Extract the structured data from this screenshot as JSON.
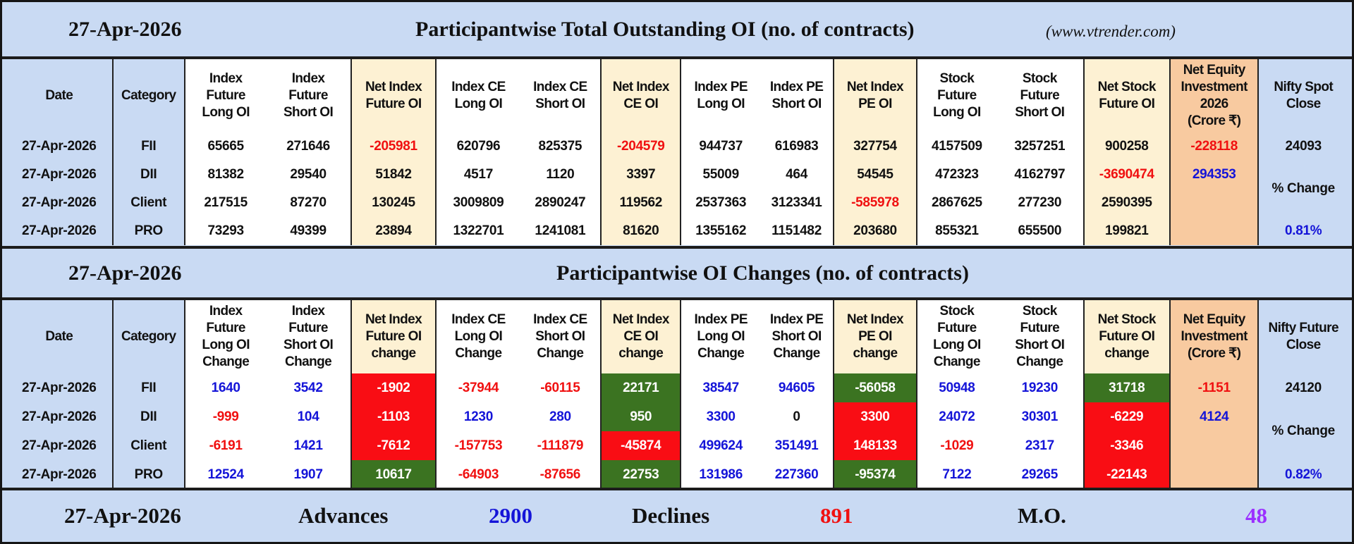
{
  "palette": {
    "red": "#f01010",
    "blue": "#1414d8",
    "purple": "#9b30ff"
  },
  "section1": {
    "date": "27-Apr-2026",
    "title": "Participantwise Total Outstanding OI (no. of contracts)",
    "source": "(www.vtrender.com)",
    "headers": [
      "Date",
      "Category",
      "Index\nFuture\nLong OI",
      "Index\nFuture\nShort OI",
      "Net Index\nFuture OI",
      "Index CE\nLong OI",
      "Index CE\nShort OI",
      "Net Index\nCE OI",
      "Index PE\nLong OI",
      "Index PE\nShort OI",
      "Net Index\nPE OI",
      "Stock\nFuture\nLong OI",
      "Stock\nFuture\nShort OI",
      "Net Stock\nFuture OI",
      "Net Equity\nInvestment\n2026\n(Crore ₹)",
      "Nifty Spot\nClose"
    ],
    "rows": [
      {
        "date": "27-Apr-2026",
        "category": "FII",
        "values": [
          "65665",
          "271646",
          "-205981",
          "620796",
          "825375",
          "-204579",
          "944737",
          "616983",
          "327754",
          "4157509",
          "3257251",
          "900258"
        ],
        "colors": [
          "black",
          "black",
          "red",
          "black",
          "black",
          "red",
          "black",
          "black",
          "black",
          "black",
          "black",
          "black"
        ],
        "net_equity": "-228118",
        "net_equity_color": "red"
      },
      {
        "date": "27-Apr-2026",
        "category": "DII",
        "values": [
          "81382",
          "29540",
          "51842",
          "4517",
          "1120",
          "3397",
          "55009",
          "464",
          "54545",
          "472323",
          "4162797",
          "-3690474"
        ],
        "colors": [
          "black",
          "black",
          "black",
          "black",
          "black",
          "black",
          "black",
          "black",
          "black",
          "black",
          "black",
          "red"
        ],
        "net_equity": "294353",
        "net_equity_color": "blue"
      },
      {
        "date": "27-Apr-2026",
        "category": "Client",
        "values": [
          "217515",
          "87270",
          "130245",
          "3009809",
          "2890247",
          "119562",
          "2537363",
          "3123341",
          "-585978",
          "2867625",
          "277230",
          "2590395"
        ],
        "colors": [
          "black",
          "black",
          "black",
          "black",
          "black",
          "black",
          "black",
          "black",
          "red",
          "black",
          "black",
          "black"
        ],
        "net_equity": "",
        "net_equity_color": "black"
      },
      {
        "date": "27-Apr-2026",
        "category": "PRO",
        "values": [
          "73293",
          "49399",
          "23894",
          "1322701",
          "1241081",
          "81620",
          "1355162",
          "1151482",
          "203680",
          "855321",
          "655500",
          "199821"
        ],
        "colors": [
          "black",
          "black",
          "black",
          "black",
          "black",
          "black",
          "black",
          "black",
          "black",
          "black",
          "black",
          "black"
        ],
        "net_equity": "",
        "net_equity_color": "black"
      }
    ],
    "nifty": {
      "close": "24093",
      "pct_label": "% Change",
      "pct": "0.81%",
      "close_color": "black",
      "pct_color": "blue"
    }
  },
  "section2": {
    "date": "27-Apr-2026",
    "title": "Participantwise OI Changes (no. of contracts)",
    "headers": [
      "Date",
      "Category",
      "Index\nFuture\nLong OI\nChange",
      "Index\nFuture\nShort OI\nChange",
      "Net Index\nFuture OI\nchange",
      "Index CE\nLong OI\nChange",
      "Index CE\nShort OI\nChange",
      "Net Index\nCE OI\nchange",
      "Index PE\nLong OI\nChange",
      "Index PE\nShort OI\nChange",
      "Net Index\nPE OI\nchange",
      "Stock\nFuture\nLong OI\nChange",
      "Stock\nFuture\nShort OI\nChange",
      "Net Stock\nFuture OI\nchange",
      "Net Equity\nInvestment\n(Crore ₹)",
      "Nifty Future\nClose"
    ],
    "rows": [
      {
        "date": "27-Apr-2026",
        "category": "FII",
        "values": [
          "1640",
          "3542",
          "-1902",
          "-37944",
          "-60115",
          "22171",
          "38547",
          "94605",
          "-56058",
          "50948",
          "19230",
          "31718"
        ],
        "colors": [
          "blue",
          "blue",
          "white",
          "red",
          "red",
          "white",
          "blue",
          "blue",
          "white",
          "blue",
          "blue",
          "white"
        ],
        "bgs": {
          "2": "red",
          "5": "green",
          "8": "green",
          "11": "green"
        },
        "net_equity": "-1151",
        "net_equity_color": "red"
      },
      {
        "date": "27-Apr-2026",
        "category": "DII",
        "values": [
          "-999",
          "104",
          "-1103",
          "1230",
          "280",
          "950",
          "3300",
          "0",
          "3300",
          "24072",
          "30301",
          "-6229"
        ],
        "colors": [
          "red",
          "blue",
          "white",
          "blue",
          "blue",
          "white",
          "blue",
          "black",
          "white",
          "blue",
          "blue",
          "white"
        ],
        "bgs": {
          "2": "red",
          "5": "green",
          "8": "red",
          "11": "red"
        },
        "net_equity": "4124",
        "net_equity_color": "blue"
      },
      {
        "date": "27-Apr-2026",
        "category": "Client",
        "values": [
          "-6191",
          "1421",
          "-7612",
          "-157753",
          "-111879",
          "-45874",
          "499624",
          "351491",
          "148133",
          "-1029",
          "2317",
          "-3346"
        ],
        "colors": [
          "red",
          "blue",
          "white",
          "red",
          "red",
          "white",
          "blue",
          "blue",
          "white",
          "red",
          "blue",
          "white"
        ],
        "bgs": {
          "2": "red",
          "5": "red",
          "8": "red",
          "11": "red"
        },
        "net_equity": "",
        "net_equity_color": "black"
      },
      {
        "date": "27-Apr-2026",
        "category": "PRO",
        "values": [
          "12524",
          "1907",
          "10617",
          "-64903",
          "-87656",
          "22753",
          "131986",
          "227360",
          "-95374",
          "7122",
          "29265",
          "-22143"
        ],
        "colors": [
          "blue",
          "blue",
          "white",
          "red",
          "red",
          "white",
          "blue",
          "blue",
          "white",
          "blue",
          "blue",
          "white"
        ],
        "bgs": {
          "2": "green",
          "5": "green",
          "8": "green",
          "11": "red"
        },
        "net_equity": "",
        "net_equity_color": "black"
      }
    ],
    "nifty": {
      "close": "24120",
      "pct_label": "% Change",
      "pct": "0.82%",
      "close_color": "black",
      "pct_color": "blue"
    }
  },
  "footer": {
    "date": "27-Apr-2026",
    "advances_label": "Advances",
    "advances": "2900",
    "declines_label": "Declines",
    "declines": "891",
    "mo_label": "M.O.",
    "mo": "48"
  }
}
